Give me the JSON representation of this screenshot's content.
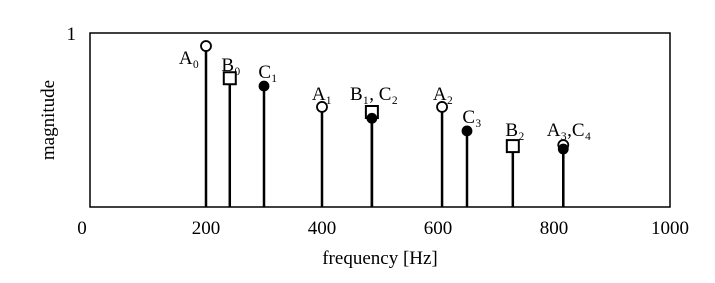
{
  "chart_data": {
    "type": "stem",
    "xlabel": "frequency [Hz]",
    "ylabel": "magnitude",
    "xlim": [
      0,
      1000
    ],
    "xticks": [
      0,
      200,
      400,
      600,
      800,
      1000
    ],
    "ylim": [
      0,
      1
    ],
    "yticks": [
      1
    ],
    "color": "#000000",
    "series": [
      {
        "marker": "open-circle",
        "x": [
          200,
          400,
          607,
          816
        ],
        "values": [
          0.925,
          0.575,
          0.575,
          0.356
        ]
      },
      {
        "marker": "open-square",
        "x": [
          241,
          486,
          729
        ],
        "values": [
          0.74,
          0.546,
          0.35
        ]
      },
      {
        "marker": "filled-circle",
        "x": [
          300,
          486,
          650,
          816
        ],
        "values": [
          0.695,
          0.51,
          0.437,
          0.333
        ]
      }
    ],
    "annotations": [
      "A₀",
      "B₀",
      "C₁",
      "A₁",
      "B₁, C₂",
      "A₂",
      "C₃",
      "B₂",
      "A₃,C₄"
    ]
  }
}
